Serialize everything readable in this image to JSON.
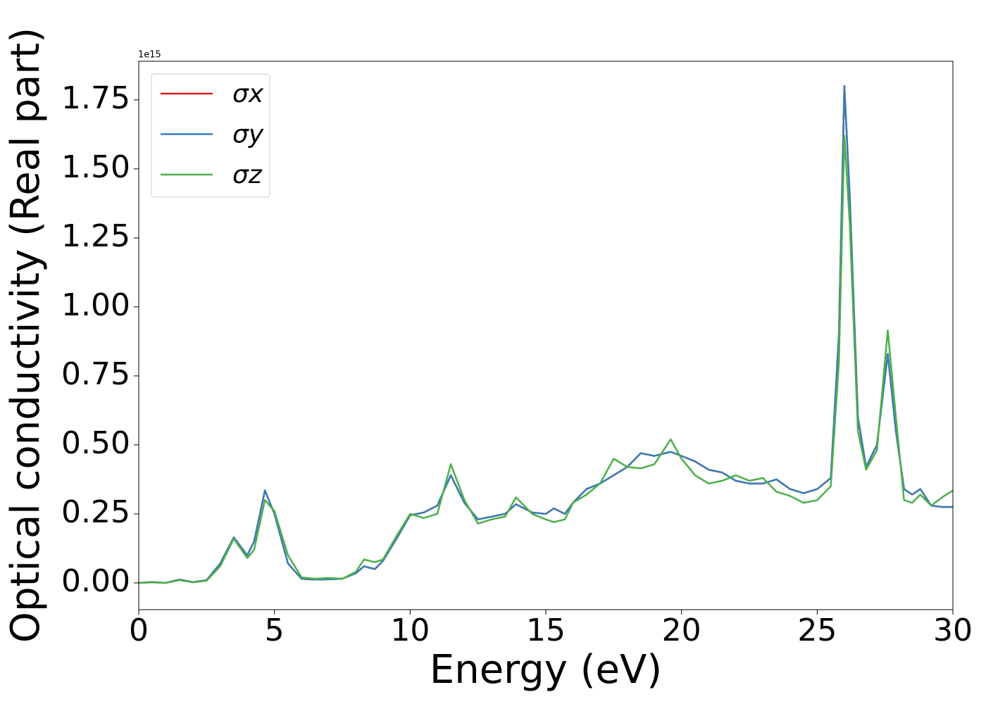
{
  "chart_data": {
    "type": "line",
    "xlabel": "Energy (eV)",
    "ylabel": "Optical conductivity (Real part)",
    "y_offset_text": "1e15",
    "x": [
      0,
      0.5,
      1,
      1.5,
      2,
      2.5,
      3,
      3.5,
      4,
      4.25,
      4.65,
      5,
      5.5,
      6,
      6.5,
      7,
      7.5,
      8,
      8.3,
      8.7,
      9,
      9.5,
      10,
      10.5,
      11,
      11.5,
      12,
      12.5,
      13,
      13.5,
      13.9,
      14.5,
      15,
      15.3,
      15.7,
      16,
      16.5,
      17,
      17.5,
      18,
      18.5,
      19,
      19.6,
      20,
      20.5,
      21,
      21.5,
      22,
      22.5,
      23,
      23.5,
      24,
      24.5,
      25,
      25.5,
      25.8,
      26,
      26.2,
      26.5,
      26.8,
      27.2,
      27.6,
      27.9,
      28.2,
      28.5,
      28.8,
      29.2,
      29.6,
      30
    ],
    "series": [
      {
        "name": "σx",
        "color": "#e41a1c",
        "values": [
          0,
          0.003,
          0,
          0.012,
          0.003,
          0.01,
          0.07,
          0.165,
          0.1,
          0.15,
          0.335,
          0.25,
          0.07,
          0.015,
          0.012,
          0.013,
          0.015,
          0.035,
          0.06,
          0.05,
          0.08,
          0.16,
          0.245,
          0.255,
          0.28,
          0.39,
          0.29,
          0.23,
          0.24,
          0.25,
          0.285,
          0.255,
          0.25,
          0.27,
          0.25,
          0.29,
          0.34,
          0.36,
          0.39,
          0.42,
          0.47,
          0.46,
          0.475,
          0.46,
          0.44,
          0.41,
          0.4,
          0.37,
          0.36,
          0.36,
          0.375,
          0.34,
          0.325,
          0.34,
          0.38,
          0.9,
          1.8,
          1.4,
          0.6,
          0.42,
          0.5,
          0.83,
          0.55,
          0.34,
          0.32,
          0.34,
          0.28,
          0.275,
          0.275
        ]
      },
      {
        "name": "σy",
        "color": "#377eb8",
        "values": [
          0,
          0.003,
          0,
          0.012,
          0.003,
          0.01,
          0.07,
          0.165,
          0.1,
          0.15,
          0.335,
          0.25,
          0.07,
          0.015,
          0.012,
          0.013,
          0.015,
          0.035,
          0.06,
          0.05,
          0.08,
          0.16,
          0.245,
          0.255,
          0.28,
          0.39,
          0.29,
          0.23,
          0.24,
          0.25,
          0.285,
          0.255,
          0.25,
          0.27,
          0.25,
          0.29,
          0.34,
          0.36,
          0.39,
          0.42,
          0.47,
          0.46,
          0.475,
          0.46,
          0.44,
          0.41,
          0.4,
          0.37,
          0.36,
          0.36,
          0.375,
          0.34,
          0.325,
          0.34,
          0.38,
          0.9,
          1.8,
          1.4,
          0.6,
          0.42,
          0.5,
          0.83,
          0.55,
          0.34,
          0.32,
          0.34,
          0.28,
          0.275,
          0.275
        ]
      },
      {
        "name": "σz",
        "color": "#4daf4a",
        "values": [
          0,
          0.002,
          0,
          0.01,
          0.002,
          0.008,
          0.06,
          0.16,
          0.09,
          0.12,
          0.3,
          0.26,
          0.1,
          0.02,
          0.015,
          0.018,
          0.015,
          0.04,
          0.085,
          0.075,
          0.085,
          0.17,
          0.25,
          0.235,
          0.25,
          0.43,
          0.3,
          0.215,
          0.23,
          0.24,
          0.31,
          0.25,
          0.23,
          0.22,
          0.23,
          0.29,
          0.32,
          0.36,
          0.45,
          0.42,
          0.415,
          0.43,
          0.52,
          0.45,
          0.39,
          0.36,
          0.37,
          0.39,
          0.37,
          0.38,
          0.33,
          0.315,
          0.29,
          0.3,
          0.35,
          0.8,
          1.62,
          1.3,
          0.55,
          0.41,
          0.48,
          0.915,
          0.6,
          0.3,
          0.29,
          0.32,
          0.28,
          0.31,
          0.335
        ]
      }
    ],
    "xlim": [
      0,
      30
    ],
    "xticks": [
      0,
      5,
      10,
      15,
      20,
      25,
      30
    ],
    "ylim": [
      -0.097,
      1.89
    ],
    "yticks": [
      {
        "value": 0,
        "label": "0.00"
      },
      {
        "value": 0.25,
        "label": "0.25"
      },
      {
        "value": 0.5,
        "label": "0.50"
      },
      {
        "value": 0.75,
        "label": "0.75"
      },
      {
        "value": 1,
        "label": "1.00"
      },
      {
        "value": 1.25,
        "label": "1.25"
      },
      {
        "value": 1.5,
        "label": "1.50"
      },
      {
        "value": 1.75,
        "label": "1.75"
      }
    ],
    "legend": "upper left",
    "grid": false
  }
}
